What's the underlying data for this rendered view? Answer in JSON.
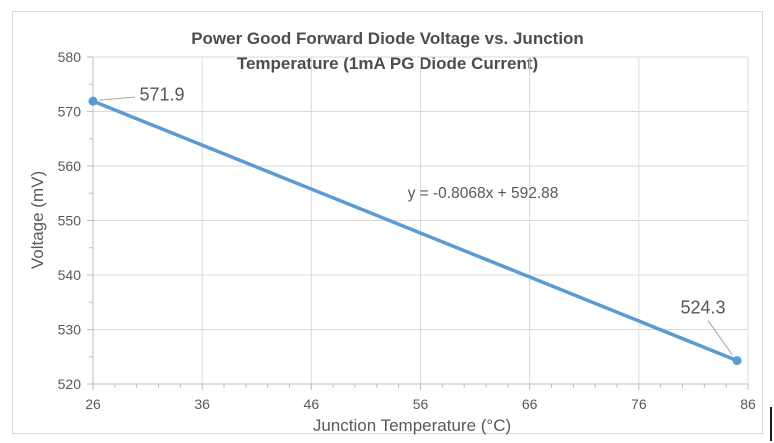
{
  "chart_data": {
    "type": "line",
    "title": "Power Good Forward Diode Voltage vs. Junction Temperature (1mA PG Diode Current)",
    "title_lines": [
      "Power Good Forward Diode Voltage vs. Junction",
      "Temperature (1mA PG Diode Current)"
    ],
    "xlabel": "Junction Temperature (°C)",
    "ylabel": "Voltage (mV)",
    "xlim": [
      26,
      86
    ],
    "ylim": [
      520,
      580
    ],
    "x_major_ticks": [
      26,
      36,
      46,
      56,
      66,
      76,
      86
    ],
    "x_minor_step": 2,
    "y_major_ticks": [
      520,
      530,
      540,
      550,
      560,
      570,
      580
    ],
    "y_minor_step": 5,
    "grid": true,
    "legend": "none",
    "series": [
      {
        "x": [
          26,
          85
        ],
        "y": [
          571.9,
          524.3
        ],
        "color": "#5B9BD5"
      }
    ],
    "point_labels": [
      "571.9",
      "524.3"
    ],
    "trendline_equation": "y = -0.8068x + 592.88"
  },
  "colors": {
    "series_blue": "#5B9BD5",
    "gridline": "#D9D9D9",
    "axis": "#BFBFBF",
    "tick_text": "#595959",
    "title_text": "#4d4d4d",
    "leader": "#A6A6A6",
    "chart_border": "#D9D9D9",
    "background": "#FFFFFF"
  }
}
